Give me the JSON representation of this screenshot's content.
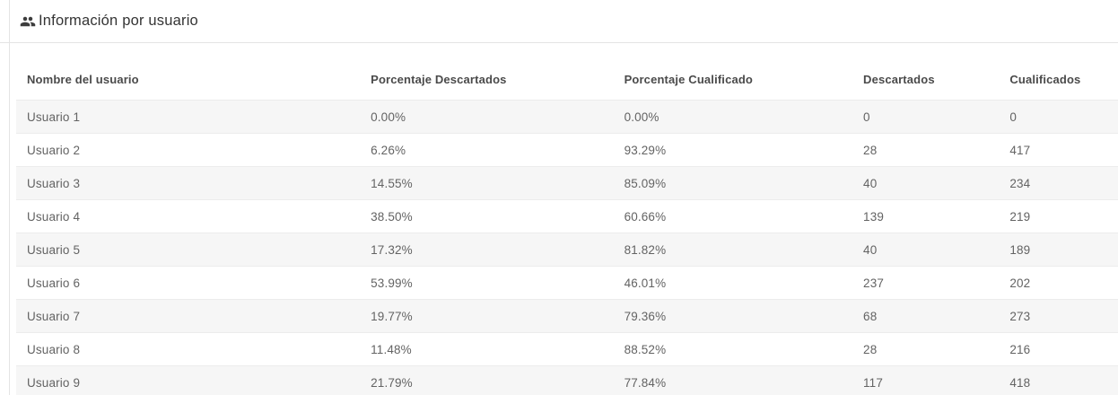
{
  "panel": {
    "title": "Información por usuario",
    "icon": "people-group-icon"
  },
  "table": {
    "columns": [
      "Nombre del usuario",
      "Porcentaje Descartados",
      "Porcentaje Cualificado",
      "Descartados",
      "Cualificados"
    ],
    "rows": [
      [
        "Usuario 1",
        "0.00%",
        "0.00%",
        "0",
        "0"
      ],
      [
        "Usuario 2",
        "6.26%",
        "93.29%",
        "28",
        "417"
      ],
      [
        "Usuario 3",
        "14.55%",
        "85.09%",
        "40",
        "234"
      ],
      [
        "Usuario 4",
        "38.50%",
        "60.66%",
        "139",
        "219"
      ],
      [
        "Usuario 5",
        "17.32%",
        "81.82%",
        "40",
        "189"
      ],
      [
        "Usuario 6",
        "53.99%",
        "46.01%",
        "237",
        "202"
      ],
      [
        "Usuario 7",
        "19.77%",
        "79.36%",
        "68",
        "273"
      ],
      [
        "Usuario 8",
        "11.48%",
        "88.52%",
        "28",
        "216"
      ],
      [
        "Usuario 9",
        "21.79%",
        "77.84%",
        "117",
        "418"
      ]
    ]
  },
  "colors": {
    "row_stripe": "#f6f6f6",
    "row_border": "#ececec",
    "header_border": "#e4e4e4",
    "title_text": "#343434",
    "header_text": "#4a4a4a",
    "cell_text": "#636363"
  }
}
